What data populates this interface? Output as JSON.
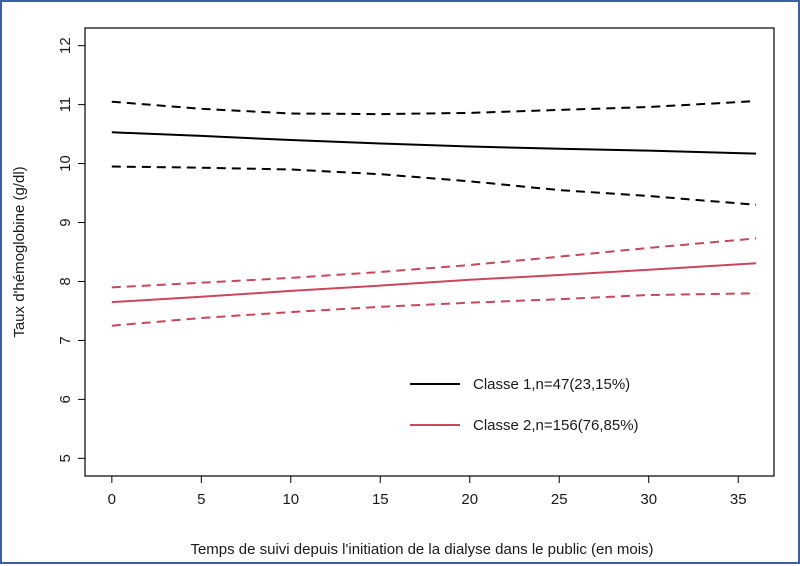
{
  "chart_data": {
    "type": "line",
    "title": "",
    "xlabel": "Temps de suivi depuis l'initiation de la dialyse dans le public (en mois)",
    "ylabel": "Taux d'hémoglobine (g/dl)",
    "xlim": [
      -1.5,
      37
    ],
    "ylim": [
      4.7,
      12.3
    ],
    "x_ticks": [
      0,
      5,
      10,
      15,
      20,
      25,
      30,
      35
    ],
    "y_ticks": [
      5,
      6,
      7,
      8,
      9,
      10,
      11,
      12
    ],
    "grid": false,
    "legend_position": "bottom-right",
    "series": [
      {
        "name": "Classe 1,n=47(23,15%)",
        "color": "#000000",
        "x": [
          0,
          5,
          10,
          15,
          20,
          25,
          30,
          36
        ],
        "values": [
          10.53,
          10.47,
          10.4,
          10.34,
          10.29,
          10.25,
          10.22,
          10.17
        ],
        "ci_lower": [
          9.95,
          9.93,
          9.9,
          9.82,
          9.7,
          9.55,
          9.45,
          9.3
        ],
        "ci_upper": [
          11.05,
          10.93,
          10.85,
          10.84,
          10.86,
          10.91,
          10.96,
          11.06
        ]
      },
      {
        "name": "Classe 2,n=156(76,85%)",
        "color": "#c8475c",
        "x": [
          0,
          5,
          10,
          15,
          20,
          25,
          30,
          36
        ],
        "values": [
          7.65,
          7.74,
          7.84,
          7.93,
          8.03,
          8.11,
          8.2,
          8.31
        ],
        "ci_lower": [
          7.25,
          7.38,
          7.48,
          7.57,
          7.64,
          7.7,
          7.77,
          7.8
        ],
        "ci_upper": [
          7.9,
          7.98,
          8.06,
          8.16,
          8.28,
          8.42,
          8.57,
          8.73
        ]
      }
    ]
  }
}
